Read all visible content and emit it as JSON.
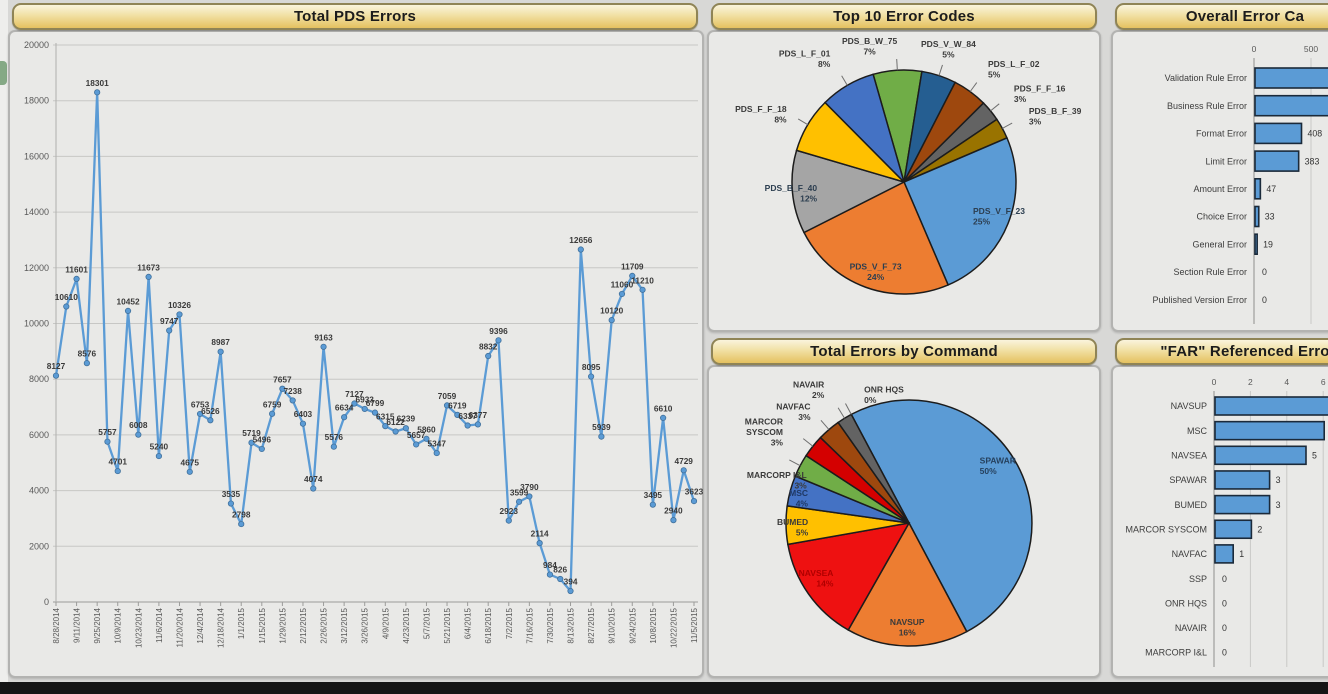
{
  "page": {
    "background": "#d8d8d6",
    "accent_gold": "#e8c96a",
    "series_blue": "#5B9BD5"
  },
  "chart_data": [
    {
      "id": "total_pds_errors",
      "type": "line",
      "title": "Total PDS Errors",
      "ylim": [
        0,
        20000
      ],
      "y_tick_step": 2000,
      "grid": true,
      "line_color": "#5B9BD5",
      "marker": true,
      "data_labels": true,
      "x_tick_labels": [
        "8/28/2014",
        "9/11/2014",
        "9/25/2014",
        "10/9/2014",
        "10/23/2014",
        "11/6/2014",
        "11/20/2014",
        "12/4/2014",
        "12/18/2014",
        "1/1/2015",
        "1/15/2015",
        "1/29/2015",
        "2/12/2015",
        "2/26/2015",
        "3/12/2015",
        "3/26/2015",
        "4/9/2015",
        "4/23/2015",
        "5/7/2015",
        "5/21/2015",
        "6/4/2015",
        "6/18/2015",
        "7/2/2015",
        "7/16/2015",
        "7/30/2015",
        "8/13/2015",
        "8/27/2015",
        "9/10/2015",
        "9/24/2015",
        "10/8/2015",
        "10/22/2015",
        "11/5/2015"
      ],
      "points_per_tick": 2,
      "values": [
        8127,
        10610,
        11601,
        8576,
        18301,
        5757,
        4701,
        10452,
        6008,
        11673,
        5240,
        9747,
        10326,
        4675,
        6753,
        6526,
        8987,
        3535,
        2798,
        5719,
        5496,
        6759,
        7657,
        7238,
        6403,
        4074,
        9163,
        5576,
        6634,
        7127,
        6933,
        6799,
        6315,
        6122,
        6239,
        5657,
        5860,
        5347,
        7059,
        6719,
        6337,
        6377,
        8832,
        9396,
        2923,
        3599,
        3790,
        2114,
        984,
        826,
        394,
        12656,
        8095,
        5939,
        10120,
        11060,
        11709,
        11210,
        3495,
        6610,
        2940,
        4729,
        3623
      ]
    },
    {
      "id": "top_10_error_codes",
      "type": "pie",
      "title": "Top 10 Error Codes",
      "start_angle_deg": -16,
      "slices": [
        {
          "label": "PDS_B_W_75",
          "pct": 7,
          "color": "#70AD47",
          "inside": false
        },
        {
          "label": "PDS_V_W_84",
          "pct": 5,
          "color": "#255E91",
          "inside": false
        },
        {
          "label": "PDS_L_F_02",
          "pct": 5,
          "color": "#9E480E",
          "inside": false
        },
        {
          "label": "PDS_F_F_16",
          "pct": 3,
          "color": "#636363",
          "inside": false
        },
        {
          "label": "PDS_B_F_39",
          "pct": 3,
          "color": "#997300",
          "inside": false
        },
        {
          "label": "PDS_V_F_23",
          "pct": 25,
          "color": "#5B9BD5",
          "inside": true
        },
        {
          "label": "PDS_V_F_73",
          "pct": 24,
          "color": "#ED7D31",
          "inside": true
        },
        {
          "label": "PDS_B_F_40",
          "pct": 12,
          "color": "#A5A5A5",
          "inside": true
        },
        {
          "label": "PDS_F_F_18",
          "pct": 8,
          "color": "#FFC000",
          "inside": false
        },
        {
          "label": "PDS_L_F_01",
          "pct": 8,
          "color": "#4472C4",
          "inside": false
        }
      ]
    },
    {
      "id": "overall_error_categories",
      "type": "bar",
      "title": "Overall Error Ca",
      "bar_color": "#5B9BD5",
      "x_ticks": [
        0,
        500
      ],
      "rows": [
        {
          "label": "Validation Rule Error",
          "value": null,
          "clipped": true
        },
        {
          "label": "Business Rule Error",
          "value": null,
          "clipped": true
        },
        {
          "label": "Format Error",
          "value": 408
        },
        {
          "label": "Limit Error",
          "value": 383
        },
        {
          "label": "Amount Error",
          "value": 47
        },
        {
          "label": "Choice Error",
          "value": 33
        },
        {
          "label": "General Error",
          "value": 19
        },
        {
          "label": "Section Rule Error",
          "value": 0
        },
        {
          "label": "Published Version Error",
          "value": 0
        }
      ]
    },
    {
      "id": "total_errors_by_command",
      "type": "pie",
      "title": "Total Errors by Command",
      "start_angle_deg": -28,
      "slices": [
        {
          "label": "SPAWAR",
          "pct": 50,
          "color": "#5B9BD5",
          "inside": true
        },
        {
          "label": "NAVSUP",
          "pct": 16,
          "color": "#ED7D31",
          "inside": true
        },
        {
          "label": "NAVSEA",
          "pct": 14,
          "color": "#EE1111",
          "inside": true
        },
        {
          "label": "BUMED",
          "pct": 5,
          "color": "#FFC000",
          "inside": true
        },
        {
          "label": "MSC",
          "pct": 4,
          "color": "#4472C4",
          "inside": true
        },
        {
          "label": "MARCORP I&L",
          "pct": 3,
          "color": "#70AD47",
          "inside": false
        },
        {
          "label": "MARCOR SYSCOM",
          "pct": 3,
          "color": "#D40000",
          "inside": false
        },
        {
          "label": "NAVFAC",
          "pct": 3,
          "color": "#9E480E",
          "inside": false
        },
        {
          "label": "NAVAIR",
          "pct": 2,
          "color": "#636363",
          "inside": false
        },
        {
          "label": "ONR HQS",
          "pct": 0,
          "color": "#4D4D4D",
          "inside": false
        }
      ]
    },
    {
      "id": "far_referenced_errors",
      "type": "bar",
      "title": "\"FAR\" Referenced Erro",
      "bar_color": "#5B9BD5",
      "x_ticks": [
        0,
        2,
        4,
        6
      ],
      "rows": [
        {
          "label": "NAVSUP",
          "value": null,
          "clipped": true
        },
        {
          "label": "MSC",
          "value": 6,
          "show_value": false
        },
        {
          "label": "NAVSEA",
          "value": 5
        },
        {
          "label": "SPAWAR",
          "value": 3
        },
        {
          "label": "BUMED",
          "value": 3
        },
        {
          "label": "MARCOR SYSCOM",
          "value": 2
        },
        {
          "label": "NAVFAC",
          "value": 1
        },
        {
          "label": "SSP",
          "value": 0
        },
        {
          "label": "ONR HQS",
          "value": 0
        },
        {
          "label": "NAVAIR",
          "value": 0
        },
        {
          "label": "MARCORP I&L",
          "value": 0
        }
      ]
    }
  ]
}
